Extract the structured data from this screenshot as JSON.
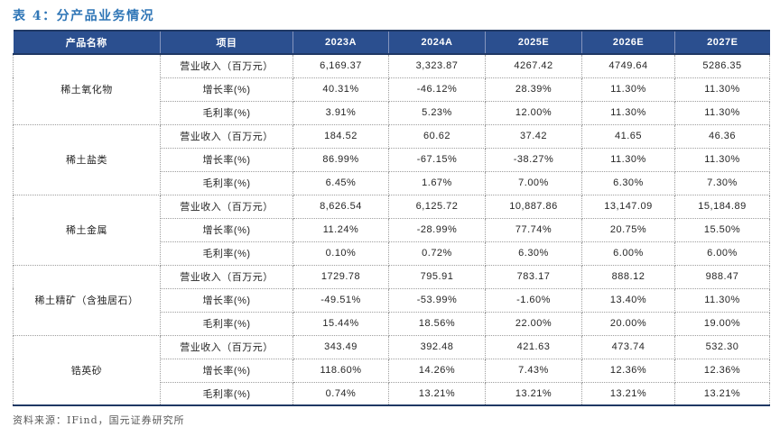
{
  "title": "表 4：分产品业务情况",
  "source": "资料来源：IFind，国元证券研究所",
  "colors": {
    "title_blue": "#2E75B6",
    "header_bg": "#2B4F8F",
    "header_border": "#1F3864",
    "body_text": "#262626",
    "dotted_border": "#9E9E9E",
    "source_gray": "#595959"
  },
  "table": {
    "headers": [
      "产品名称",
      "项目",
      "2023A",
      "2024A",
      "2025E",
      "2026E",
      "2027E"
    ],
    "groups": [
      {
        "product": "稀土氧化物",
        "rows": [
          {
            "item": "营业收入（百万元）",
            "values": [
              "6,169.37",
              "3,323.87",
              "4267.42",
              "4749.64",
              "5286.35"
            ]
          },
          {
            "item": "增长率(%)",
            "values": [
              "40.31%",
              "-46.12%",
              "28.39%",
              "11.30%",
              "11.30%"
            ]
          },
          {
            "item": "毛利率(%)",
            "values": [
              "3.91%",
              "5.23%",
              "12.00%",
              "11.30%",
              "11.30%"
            ]
          }
        ]
      },
      {
        "product": "稀土盐类",
        "rows": [
          {
            "item": "营业收入（百万元）",
            "values": [
              "184.52",
              "60.62",
              "37.42",
              "41.65",
              "46.36"
            ]
          },
          {
            "item": "增长率(%)",
            "values": [
              "86.99%",
              "-67.15%",
              "-38.27%",
              "11.30%",
              "11.30%"
            ]
          },
          {
            "item": "毛利率(%)",
            "values": [
              "6.45%",
              "1.67%",
              "7.00%",
              "6.30%",
              "7.30%"
            ]
          }
        ]
      },
      {
        "product": "稀土金属",
        "rows": [
          {
            "item": "营业收入（百万元）",
            "values": [
              "8,626.54",
              "6,125.72",
              "10,887.86",
              "13,147.09",
              "15,184.89"
            ]
          },
          {
            "item": "增长率(%)",
            "values": [
              "11.24%",
              "-28.99%",
              "77.74%",
              "20.75%",
              "15.50%"
            ]
          },
          {
            "item": "毛利率(%)",
            "values": [
              "0.10%",
              "0.72%",
              "6.30%",
              "6.00%",
              "6.00%"
            ]
          }
        ]
      },
      {
        "product": "稀土精矿（含独居石）",
        "rows": [
          {
            "item": "营业收入（百万元）",
            "values": [
              "1729.78",
              "795.91",
              "783.17",
              "888.12",
              "988.47"
            ]
          },
          {
            "item": "增长率(%)",
            "values": [
              "-49.51%",
              "-53.99%",
              "-1.60%",
              "13.40%",
              "11.30%"
            ]
          },
          {
            "item": "毛利率(%)",
            "values": [
              "15.44%",
              "18.56%",
              "22.00%",
              "20.00%",
              "19.00%"
            ]
          }
        ]
      },
      {
        "product": "锆英砂",
        "rows": [
          {
            "item": "营业收入（百万元）",
            "values": [
              "343.49",
              "392.48",
              "421.63",
              "473.74",
              "532.30"
            ]
          },
          {
            "item": "增长率(%)",
            "values": [
              "118.60%",
              "14.26%",
              "7.43%",
              "12.36%",
              "12.36%"
            ]
          },
          {
            "item": "毛利率(%)",
            "values": [
              "0.74%",
              "13.21%",
              "13.21%",
              "13.21%",
              "13.21%"
            ]
          }
        ]
      }
    ]
  }
}
